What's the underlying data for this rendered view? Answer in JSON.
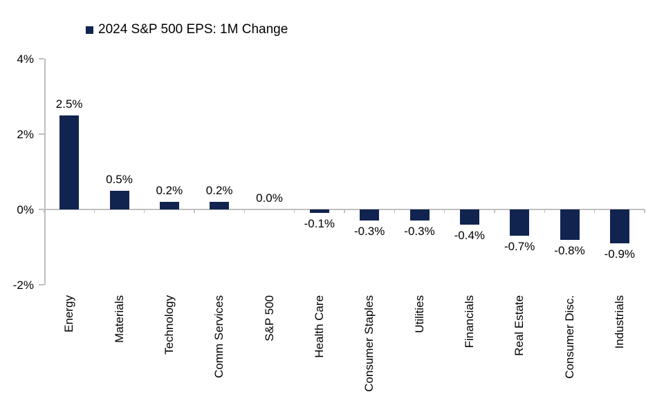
{
  "colors": {
    "bar": "#112450",
    "axis": "#BFBFBF",
    "text": "#000000",
    "background": "#FFFFFF"
  },
  "legend": {
    "label": "2024 S&P 500 EPS: 1M Change"
  },
  "chart_data": {
    "type": "bar",
    "title": "2024 S&P 500 EPS: 1M Change",
    "categories": [
      "Energy",
      "Materials",
      "Technology",
      "Comm Services",
      "S&P 500",
      "Health Care",
      "Consumer Staples",
      "Utilities",
      "Financials",
      "Real Estate",
      "Consumer Disc.",
      "Industrials"
    ],
    "values": [
      2.5,
      0.5,
      0.2,
      0.2,
      0.0,
      -0.1,
      -0.3,
      -0.3,
      -0.4,
      -0.7,
      -0.8,
      -0.9
    ],
    "data_labels": [
      "2.5%",
      "0.5%",
      "0.2%",
      "0.2%",
      "0.0%",
      "-0.1%",
      "-0.3%",
      "-0.3%",
      "-0.4%",
      "-0.7%",
      "-0.8%",
      "-0.9%"
    ],
    "xlabel": "",
    "ylabel": "",
    "ylim": [
      -2,
      4
    ],
    "yticks": [
      {
        "value": 4,
        "label": "4%"
      },
      {
        "value": 2,
        "label": "2%"
      },
      {
        "value": 0,
        "label": "0%"
      },
      {
        "value": -2,
        "label": "-2%"
      }
    ],
    "grid": false,
    "legend_position": "top-left",
    "bar_color": "#112450"
  }
}
